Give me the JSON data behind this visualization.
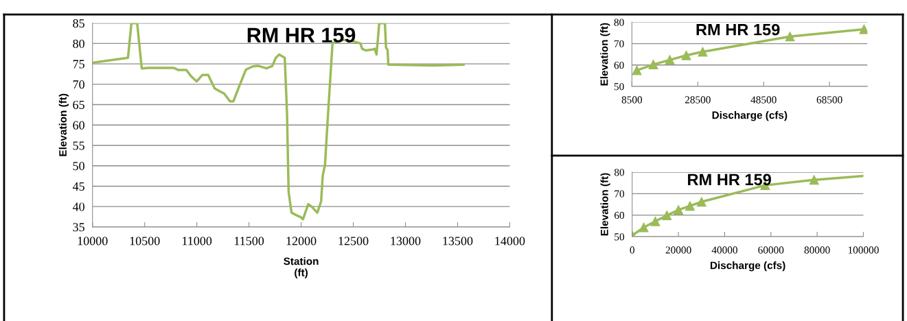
{
  "chart_data": [
    {
      "type": "line",
      "title": "RM HR 159",
      "xlabel": "Station\n(ft)",
      "ylabel": "Elevation (ft)",
      "xlim": [
        10000,
        14000
      ],
      "xticks": [
        10000,
        10500,
        11000,
        11500,
        12000,
        12500,
        13000,
        13500,
        14000
      ],
      "ylim": [
        35,
        85
      ],
      "yticks": [
        35,
        40,
        45,
        50,
        55,
        60,
        65,
        70,
        75,
        80,
        85
      ],
      "grid": "y",
      "marker": "none",
      "series": [
        {
          "color": "#9bbb59",
          "x": [
            10000,
            10340,
            10373,
            10428,
            10472,
            10538,
            10780,
            10823,
            10900,
            10944,
            10999,
            11054,
            11109,
            11170,
            11218,
            11263,
            11318,
            11350,
            11405,
            11471,
            11537,
            11592,
            11669,
            11724,
            11757,
            11790,
            11843,
            11865,
            11880,
            11908,
            11952,
            11996,
            12018,
            12068,
            12105,
            12155,
            12192,
            12207,
            12229,
            12258,
            12301,
            12400,
            12520,
            12570,
            12585,
            12618,
            12683,
            12705,
            12723,
            12749,
            12803,
            12814,
            12829,
            12836,
            13273,
            13557
          ],
          "values": [
            75.3,
            76.5,
            85,
            85,
            73.9,
            74,
            74,
            73.5,
            73.5,
            72,
            70.7,
            72.3,
            72.3,
            69,
            68.3,
            67.7,
            65.8,
            65.8,
            69.4,
            73.6,
            74.4,
            74.5,
            73.9,
            74.5,
            76.5,
            77.3,
            76.5,
            62.7,
            43.6,
            38.5,
            37.9,
            37.4,
            36.9,
            40.6,
            39.9,
            38.5,
            41.3,
            47.5,
            50.3,
            62.7,
            80.1,
            80.9,
            80.4,
            80,
            78.7,
            78.3,
            78.5,
            78.7,
            77.3,
            85,
            85,
            79,
            78.4,
            74.8,
            74.6,
            74.8
          ]
        }
      ]
    },
    {
      "type": "line",
      "title": "RM HR 159",
      "xlabel": "Discharge (cfs)",
      "ylabel": "Elevation (ft)",
      "xlim": [
        8500,
        80000
      ],
      "xticks": [
        8500,
        28500,
        48500,
        68500
      ],
      "ylim": [
        50,
        80
      ],
      "yticks": [
        50,
        60,
        70,
        80
      ],
      "grid": "y",
      "marker": "triangle",
      "series": [
        {
          "color": "#9bbb59",
          "x": [
            10000,
            15000,
            20000,
            25000,
            30000,
            56500,
            79000
          ],
          "values": [
            57.5,
            60.2,
            62.4,
            64.5,
            66.2,
            73.3,
            76.7
          ]
        }
      ]
    },
    {
      "type": "line",
      "title": "RM HR 159",
      "xlabel": "Discharge (cfs)",
      "ylabel": "Elevation (ft)",
      "xlim": [
        0,
        100000
      ],
      "xticks": [
        0,
        20000,
        40000,
        60000,
        80000,
        100000
      ],
      "ylim": [
        50,
        80
      ],
      "yticks": [
        50,
        60,
        70,
        80
      ],
      "grid": "y",
      "marker": "triangle",
      "series": [
        {
          "color": "#9bbb59",
          "x": [
            0,
            5000,
            10000,
            15000,
            20000,
            25000,
            30000,
            57500,
            78700
          ],
          "values": [
            50.5,
            54.3,
            57.1,
            59.9,
            62.4,
            64.3,
            66.2,
            73.9,
            76.4
          ]
        },
        {
          "color": "#9bbb59",
          "marker": "none",
          "x": [
            78700,
            100000
          ],
          "values": [
            76.4,
            78.2
          ]
        }
      ]
    }
  ]
}
